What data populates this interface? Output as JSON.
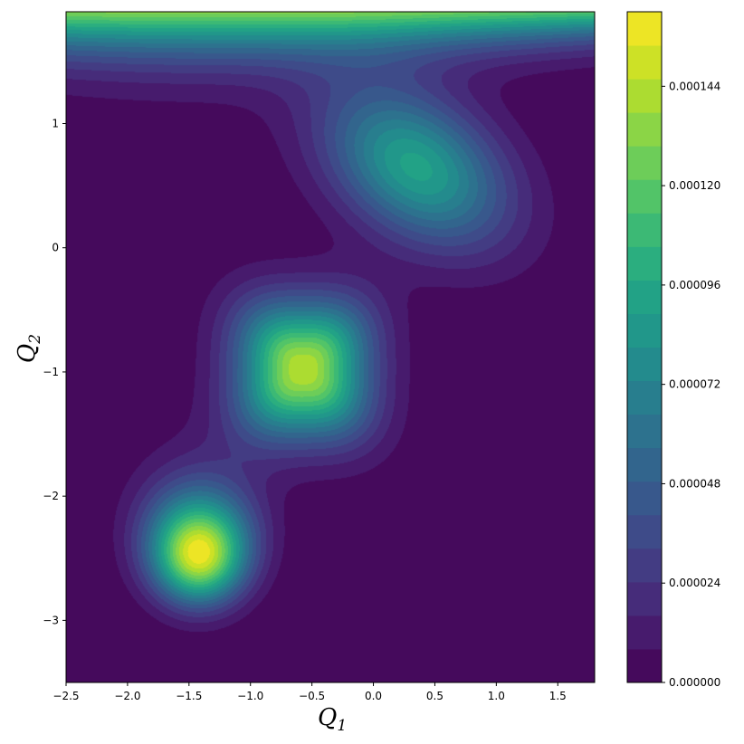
{
  "chart_data": {
    "type": "heatmap",
    "subtype": "filled-contour",
    "colormap": "viridis",
    "xlabel": "Q",
    "xlabel_subscript": "1",
    "ylabel": "Q",
    "ylabel_subscript": "2",
    "xlim": [
      -2.5,
      1.8
    ],
    "ylim": [
      -3.5,
      1.9
    ],
    "x_ticks": [
      -2.5,
      -2.0,
      -1.5,
      -1.0,
      -0.5,
      0.0,
      0.5,
      1.0,
      1.5
    ],
    "x_tick_labels": [
      "−2.5",
      "−2.0",
      "−1.5",
      "−1.0",
      "−0.5",
      "0.0",
      "0.5",
      "1.0",
      "1.5"
    ],
    "y_ticks": [
      1,
      0,
      -1,
      -2,
      -3
    ],
    "y_tick_labels": [
      "1",
      "0",
      "−1",
      "−2",
      "−3"
    ],
    "colorbar": {
      "min": 0.0,
      "max": 0.000162,
      "levels": 20,
      "ticks": [
        0.000144,
        0.00012,
        9.6e-05,
        7.2e-05,
        4.8e-05,
        2.4e-05,
        0.0
      ],
      "tick_labels": [
        "0.000144",
        "0.000120",
        "0.000096",
        "0.000072",
        "0.000048",
        "0.000024",
        "0.000000"
      ]
    },
    "peaks": [
      {
        "center": [
          -1.42,
          -2.45
        ],
        "peak_value": 0.000162,
        "shape": "compact triangular"
      },
      {
        "center": [
          -0.57,
          -0.98
        ],
        "peak_value": 0.000145,
        "shape": "rounded square"
      },
      {
        "center": [
          0.35,
          0.65
        ],
        "peak_value": 9.2e-05,
        "shape": "tilted ellipse"
      }
    ],
    "grid": false
  }
}
